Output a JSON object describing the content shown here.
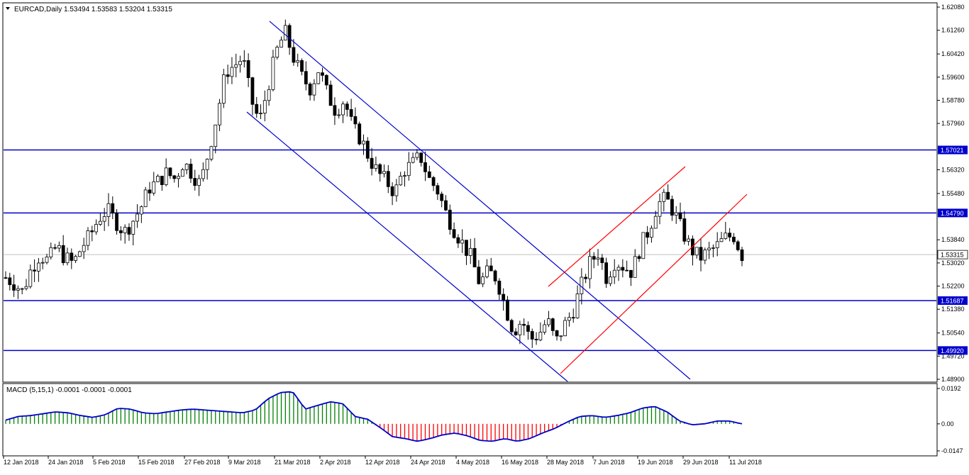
{
  "chart_data": {
    "type": "candlestick",
    "symbol_header": "EURCAD,Daily",
    "ohlc_header": "1.53494 1.53583 1.53204 1.53315",
    "price_axis": {
      "range": [
        1.489,
        1.6208
      ],
      "ticks": [
        "1.62080",
        "1.61260",
        "1.60420",
        "1.59600",
        "1.58780",
        "1.57960",
        "1.56320",
        "1.55480",
        "1.53840",
        "1.53020",
        "1.52200",
        "1.51380",
        "1.50540",
        "1.49720",
        "1.48900"
      ]
    },
    "levels": [
      {
        "value": 1.57021,
        "label": "1.57021"
      },
      {
        "value": 1.5479,
        "label": "1.54790"
      },
      {
        "value": 1.51687,
        "label": "1.51687"
      },
      {
        "value": 1.4992,
        "label": "1.49920"
      }
    ],
    "current_price": {
      "value": 1.53315,
      "label": "1.53315"
    },
    "date_labels": [
      "12 Jan 2018",
      "24 Jan 2018",
      "5 Feb 2018",
      "15 Feb 2018",
      "27 Feb 2018",
      "9 Mar 2018",
      "21 Mar 2018",
      "2 Apr 2018",
      "12 Apr 2018",
      "24 Apr 2018",
      "4 May 2018",
      "16 May 2018",
      "28 May 2018",
      "7 Jun 2018",
      "19 Jun 2018",
      "29 Jun 2018",
      "11 Jul 2018"
    ],
    "close_path": [
      1.525,
      1.523,
      1.52,
      1.528,
      1.533,
      1.531,
      1.536,
      1.532,
      1.53,
      1.536,
      1.54,
      1.546,
      1.549,
      1.545,
      1.541,
      1.545,
      1.55,
      1.557,
      1.559,
      1.562,
      1.56,
      1.566,
      1.562,
      1.558,
      1.57,
      1.583,
      1.598,
      1.6,
      1.603,
      1.588,
      1.58,
      1.593,
      1.605,
      1.612,
      1.603,
      1.596,
      1.592,
      1.599,
      1.59,
      1.584,
      1.588,
      1.578,
      1.574,
      1.567,
      1.562,
      1.559,
      1.555,
      1.563,
      1.565,
      1.568,
      1.56,
      1.556,
      1.548,
      1.542,
      1.537,
      1.532,
      1.523,
      1.527,
      1.525,
      1.515,
      1.506,
      1.51,
      1.503,
      1.505,
      1.51,
      1.502,
      1.508,
      1.513,
      1.522,
      1.53,
      1.534,
      1.525,
      1.531,
      1.529,
      1.527,
      1.536,
      1.542,
      1.551,
      1.553,
      1.548,
      1.541,
      1.535,
      1.532,
      1.534,
      1.536,
      1.539,
      1.54,
      1.533
    ],
    "macd": {
      "label": "MACD (5,15,1) -0.0001 -0.0001 -0.0001",
      "range": [
        -0.0147,
        0.0192
      ],
      "ticks": [
        "0.0192",
        "0.00",
        "-0.0147"
      ],
      "values": [
        0.002,
        0.004,
        0.0045,
        0.0055,
        0.0065,
        0.006,
        0.0045,
        0.0035,
        0.005,
        0.0085,
        0.008,
        0.006,
        0.0055,
        0.0065,
        0.0075,
        0.008,
        0.0075,
        0.007,
        0.0065,
        0.006,
        0.0075,
        0.0135,
        0.017,
        0.0175,
        0.008,
        0.01,
        0.012,
        0.011,
        0.004,
        0.0025,
        -0.002,
        -0.007,
        -0.008,
        -0.0095,
        -0.008,
        -0.006,
        -0.005,
        -0.0065,
        -0.009,
        -0.0095,
        -0.008,
        -0.0095,
        -0.008,
        -0.005,
        -0.0025,
        0.001,
        0.004,
        0.0045,
        0.0035,
        0.0045,
        0.006,
        0.0085,
        0.0095,
        0.0065,
        0.0015,
        -0.0005,
        0.0,
        0.0015,
        0.0015,
        0.0
      ]
    }
  }
}
